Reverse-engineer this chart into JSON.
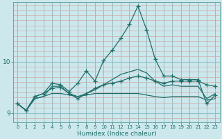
{
  "xlabel": "Humidex (Indice chaleur)",
  "bg_color": "#cce8ec",
  "line_color": "#1e6e6a",
  "xlim": [
    -0.5,
    23.5
  ],
  "ylim": [
    8.82,
    11.15
  ],
  "yticks": [
    9,
    10
  ],
  "xticks": [
    0,
    1,
    2,
    3,
    4,
    5,
    6,
    7,
    8,
    9,
    10,
    11,
    12,
    13,
    14,
    15,
    16,
    17,
    18,
    19,
    20,
    21,
    22,
    23
  ],
  "series": [
    [
      9.18,
      9.05,
      9.32,
      9.38,
      9.58,
      9.55,
      9.42,
      9.58,
      9.82,
      9.62,
      10.02,
      10.22,
      10.45,
      10.72,
      11.08,
      10.62,
      10.05,
      9.72,
      9.72,
      9.65,
      9.65,
      9.65,
      9.18,
      9.35
    ],
    [
      9.18,
      9.05,
      9.32,
      9.38,
      9.48,
      9.5,
      9.38,
      9.28,
      9.38,
      9.48,
      9.55,
      9.58,
      9.62,
      9.68,
      9.72,
      9.68,
      9.62,
      9.58,
      9.62,
      9.62,
      9.62,
      9.62,
      9.55,
      9.52
    ],
    [
      9.18,
      9.05,
      9.28,
      9.32,
      9.38,
      9.38,
      9.35,
      9.32,
      9.35,
      9.38,
      9.38,
      9.38,
      9.38,
      9.38,
      9.38,
      9.35,
      9.32,
      9.3,
      9.32,
      9.32,
      9.32,
      9.32,
      9.25,
      9.28
    ],
    [
      9.18,
      9.05,
      9.28,
      9.32,
      9.52,
      9.52,
      9.38,
      9.32,
      9.38,
      9.45,
      9.55,
      9.65,
      9.75,
      9.8,
      9.85,
      9.78,
      9.62,
      9.52,
      9.55,
      9.52,
      9.52,
      9.52,
      9.28,
      9.38
    ]
  ],
  "markers": [
    true,
    true,
    false,
    false
  ]
}
